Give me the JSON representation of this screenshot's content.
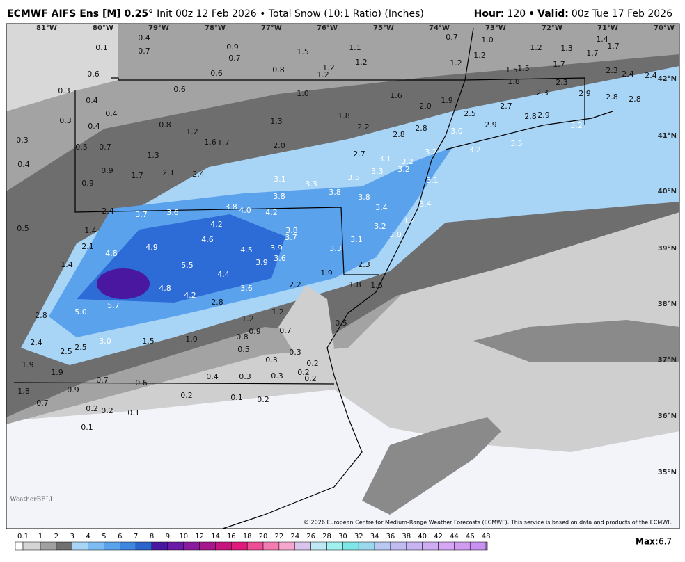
{
  "header": {
    "title_bold": "ECMWF AIFS Ens [M] 0.25°",
    "title_rest": "Init 00z 12 Feb 2026 • Total Snow (10:1 Ratio) (Inches)",
    "hour_label": "Hour:",
    "hour": "120",
    "separator": "•",
    "valid_label": "Valid:",
    "valid": "00z Tue 17 Feb 2026"
  },
  "map": {
    "longitudes": [
      "81°W",
      "80°W",
      "79°W",
      "78°W",
      "77°W",
      "76°W",
      "75°W",
      "74°W",
      "73°W",
      "72°W",
      "71°W",
      "70°W"
    ],
    "latitudes": [
      "42°N",
      "41°N",
      "40°N",
      "39°N",
      "38°N",
      "37°N",
      "36°N",
      "35°N"
    ],
    "labels": [
      "0.4",
      "0.1",
      "0.7",
      "0.9",
      "0.7",
      "0.6",
      "0.8",
      "1.5",
      "1.1",
      "1.2",
      "1.2",
      "1.2",
      "0.7",
      "1.0",
      "1.2",
      "1.2",
      "1.2",
      "1.3",
      "1.4",
      "1.7",
      "1.7",
      "1.7",
      "1.5",
      "1.5",
      "1.8",
      "2.3",
      "2.4",
      "2.4",
      "2.3",
      "2.3",
      "2.9",
      "2.8",
      "2.8",
      "2.7",
      "2.5",
      "2.0",
      "1.9",
      "1.6",
      "1.0",
      "0.6",
      "0.6",
      "0.3",
      "0.4",
      "0.4",
      "0.3",
      "0.4",
      "0.3",
      "0.4",
      "0.5",
      "0.7",
      "0.8",
      "1.2",
      "1.6",
      "1.7",
      "1.3",
      "1.8",
      "2.2",
      "2.0",
      "2.8",
      "2.8",
      "3.0",
      "2.9",
      "2.8",
      "2.9",
      "3.2",
      "3.5",
      "3.2",
      "3.2",
      "2.7",
      "3.1",
      "3.2",
      "3.2",
      "3.3",
      "3.5",
      "3.1",
      "3.8",
      "3.3",
      "3.1",
      "3.8",
      "2.4",
      "2.1",
      "1.7",
      "1.3",
      "0.9",
      "0.9",
      "0.5",
      "2.4",
      "3.7",
      "3.6",
      "3.8",
      "4.0",
      "4.2",
      "4.2",
      "4.6",
      "4.9",
      "4.8",
      "1.4",
      "2.1",
      "1.4",
      "3.8",
      "3.4",
      "3.4",
      "3.2",
      "3.2",
      "3.0",
      "3.1",
      "3.3",
      "2.3",
      "3.8",
      "3.7",
      "4.5",
      "3.9",
      "3.6",
      "3.9",
      "5.5",
      "4.4",
      "4.8",
      "4.2",
      "3.6",
      "2.8",
      "5.7",
      "5.0",
      "2.8",
      "2.2",
      "1.9",
      "1.8",
      "1.6",
      "1.2",
      "1.2",
      "0.7",
      "0.9",
      "0.8",
      "0.5",
      "1.0",
      "1.5",
      "3.0",
      "2.5",
      "2.5",
      "2.4",
      "0.5",
      "0.3",
      "0.3",
      "0.2",
      "0.2",
      "0.2",
      "0.3",
      "0.3",
      "0.4",
      "0.6",
      "0.7",
      "1.9",
      "1.9",
      "0.9",
      "1.8",
      "0.7",
      "0.2",
      "0.1",
      "0.2",
      "0.2",
      "0.2",
      "0.1",
      "0.1"
    ],
    "copyright": "© 2026 European Centre for Medium-Range Weather Forecasts (ECMWF). This service is based on data and products of the ECMWF.",
    "logo": "WeatherBELL"
  },
  "legend": {
    "levels": [
      0.1,
      1,
      2,
      3,
      4,
      5,
      6,
      7,
      8,
      9,
      10,
      12,
      14,
      16,
      18,
      20,
      22,
      24,
      26,
      28,
      30,
      32,
      34,
      36,
      38,
      40,
      42,
      44,
      46,
      48
    ],
    "colors": [
      "#d4d4d4",
      "#a0a0a0",
      "#707070",
      "#a8d4f6",
      "#7dbcf2",
      "#5aa2ec",
      "#3e86e0",
      "#2a64cc",
      "#4a18a0",
      "#6a1aa6",
      "#8a1aa0",
      "#a8168e",
      "#c8147e",
      "#e0197a",
      "#ee4c96",
      "#f27cb2",
      "#f5a6cc",
      "#d8c4ec",
      "#bfe8f5",
      "#a0f0f0",
      "#7ee6e6",
      "#9ad8f0",
      "#b8c8f2",
      "#c0bcf2",
      "#c8b4f4",
      "#ceacf4",
      "#d4a6f4",
      "#d09cf2",
      "#c890f0",
      "#c088ee"
    ],
    "max_label": "Max:",
    "max": 6.7
  }
}
